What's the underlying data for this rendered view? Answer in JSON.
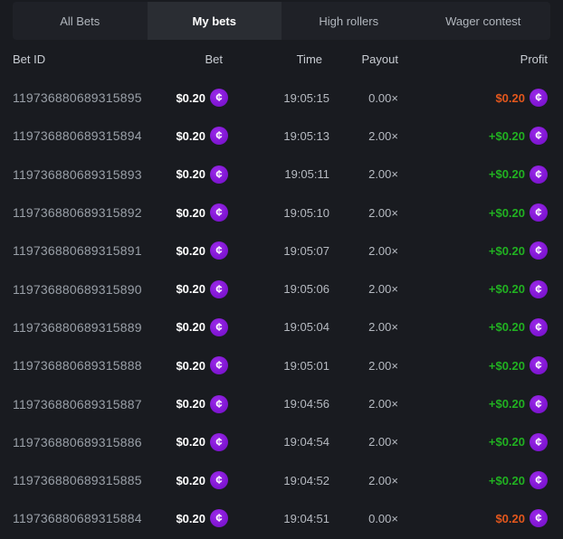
{
  "colors": {
    "page_bg": "#191b20",
    "tabbar_bg": "#1f2127",
    "tab_active_bg": "#2a2d33",
    "profit_win": "#21b121",
    "profit_loss": "#e2571d",
    "coin_purple": "#8318d6",
    "bet_text": "#ffffff",
    "muted_text": "#9aa0a8"
  },
  "icons": {
    "coin_glyph": "¢",
    "coin_name": "cent-coin-icon"
  },
  "tabs": [
    {
      "label": "All Bets",
      "active": false
    },
    {
      "label": "My bets",
      "active": true
    },
    {
      "label": "High rollers",
      "active": false
    },
    {
      "label": "Wager contest",
      "active": false
    }
  ],
  "table": {
    "columns": {
      "id": "Bet ID",
      "bet": "Bet",
      "time": "Time",
      "payout": "Payout",
      "profit": "Profit"
    },
    "rows": [
      {
        "id": "119736880689315895",
        "bet": "$0.20",
        "time": "19:05:15",
        "payout": "0.00×",
        "profit": "$0.20",
        "profit_type": "loss"
      },
      {
        "id": "119736880689315894",
        "bet": "$0.20",
        "time": "19:05:13",
        "payout": "2.00×",
        "profit": "+$0.20",
        "profit_type": "win"
      },
      {
        "id": "119736880689315893",
        "bet": "$0.20",
        "time": "19:05:11",
        "payout": "2.00×",
        "profit": "+$0.20",
        "profit_type": "win"
      },
      {
        "id": "119736880689315892",
        "bet": "$0.20",
        "time": "19:05:10",
        "payout": "2.00×",
        "profit": "+$0.20",
        "profit_type": "win"
      },
      {
        "id": "119736880689315891",
        "bet": "$0.20",
        "time": "19:05:07",
        "payout": "2.00×",
        "profit": "+$0.20",
        "profit_type": "win"
      },
      {
        "id": "119736880689315890",
        "bet": "$0.20",
        "time": "19:05:06",
        "payout": "2.00×",
        "profit": "+$0.20",
        "profit_type": "win"
      },
      {
        "id": "119736880689315889",
        "bet": "$0.20",
        "time": "19:05:04",
        "payout": "2.00×",
        "profit": "+$0.20",
        "profit_type": "win"
      },
      {
        "id": "119736880689315888",
        "bet": "$0.20",
        "time": "19:05:01",
        "payout": "2.00×",
        "profit": "+$0.20",
        "profit_type": "win"
      },
      {
        "id": "119736880689315887",
        "bet": "$0.20",
        "time": "19:04:56",
        "payout": "2.00×",
        "profit": "+$0.20",
        "profit_type": "win"
      },
      {
        "id": "119736880689315886",
        "bet": "$0.20",
        "time": "19:04:54",
        "payout": "2.00×",
        "profit": "+$0.20",
        "profit_type": "win"
      },
      {
        "id": "119736880689315885",
        "bet": "$0.20",
        "time": "19:04:52",
        "payout": "2.00×",
        "profit": "+$0.20",
        "profit_type": "win"
      },
      {
        "id": "119736880689315884",
        "bet": "$0.20",
        "time": "19:04:51",
        "payout": "0.00×",
        "profit": "$0.20",
        "profit_type": "loss"
      }
    ]
  }
}
